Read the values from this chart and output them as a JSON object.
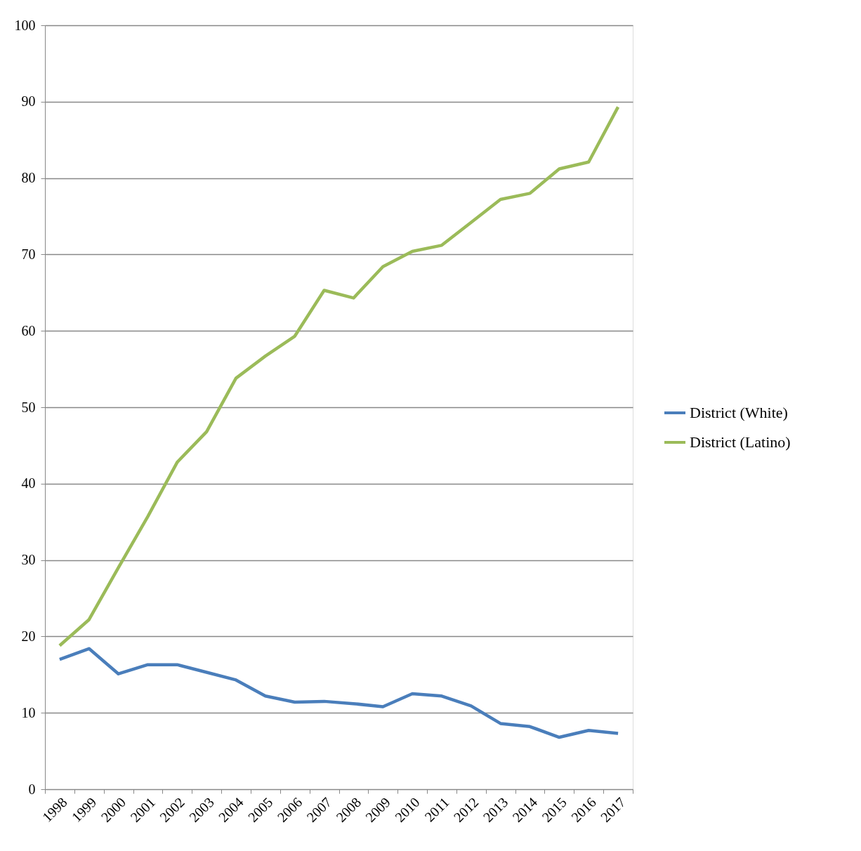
{
  "chart_data": {
    "type": "line",
    "categories": [
      "1998",
      "1999",
      "2000",
      "2001",
      "2002",
      "2003",
      "2004",
      "2005",
      "2006",
      "2007",
      "2008",
      "2009",
      "2010",
      "2011",
      "2012",
      "2013",
      "2014",
      "2015",
      "2016",
      "2017"
    ],
    "series": [
      {
        "name": "District (White)",
        "color": "#4a7ebb",
        "values": [
          17.0,
          18.4,
          15.1,
          16.3,
          16.3,
          15.3,
          14.3,
          12.2,
          11.4,
          11.5,
          11.2,
          10.8,
          12.5,
          12.2,
          10.9,
          8.6,
          8.2,
          6.8,
          7.7,
          7.3
        ]
      },
      {
        "name": "District (Latino)",
        "color": "#9bbb59",
        "values": [
          18.8,
          22.2,
          29.0,
          35.7,
          42.8,
          46.8,
          53.8,
          56.7,
          59.3,
          65.3,
          64.3,
          68.4,
          70.4,
          71.2,
          74.2,
          77.2,
          78.0,
          81.2,
          82.1,
          89.3
        ]
      }
    ],
    "ylim": [
      0,
      100
    ],
    "yticks": [
      0,
      10,
      20,
      30,
      40,
      50,
      60,
      70,
      80,
      90,
      100
    ],
    "grid": "y",
    "legend": "right",
    "marker": "none",
    "line_style": "solid"
  }
}
